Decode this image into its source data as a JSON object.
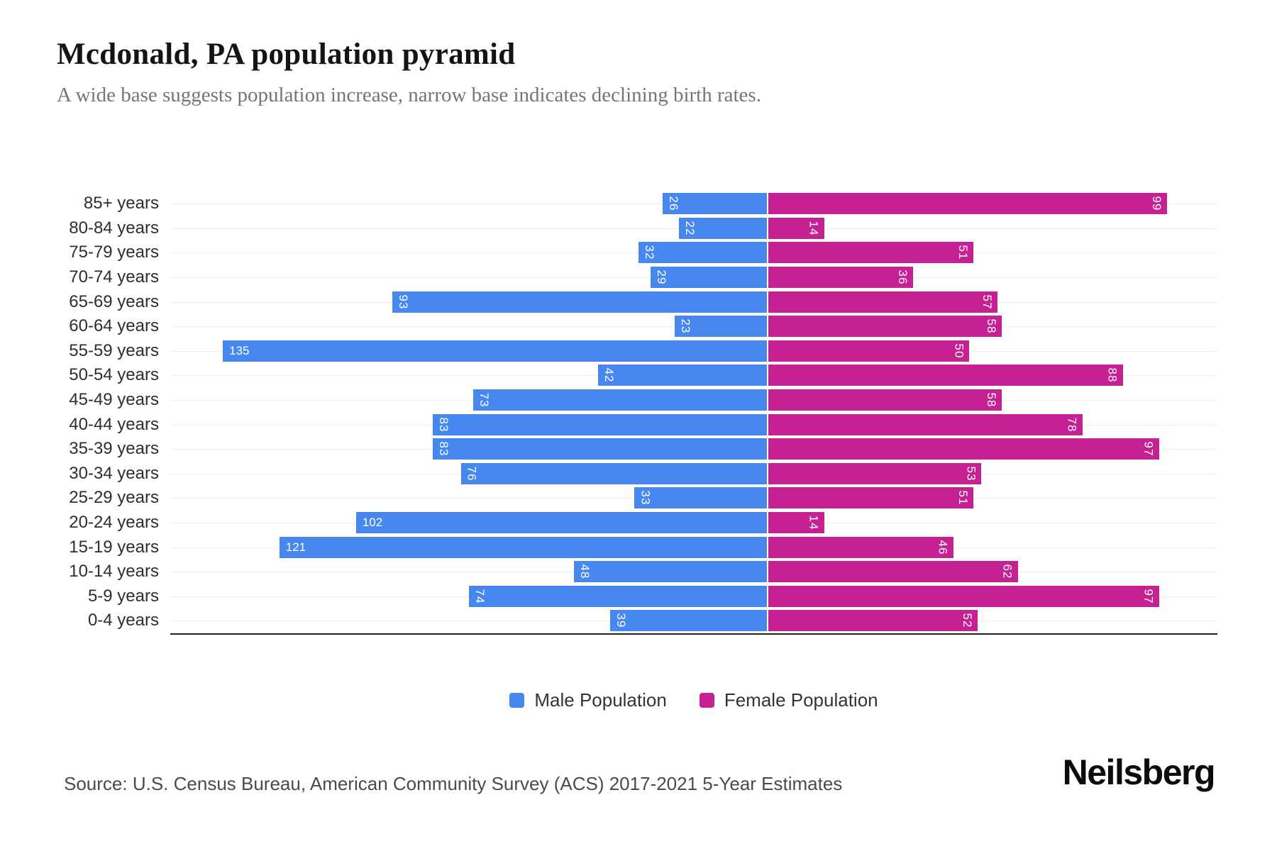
{
  "header": {
    "title": "Mcdonald, PA population pyramid",
    "subtitle": "A wide base suggests population increase, narrow base indicates declining birth rates."
  },
  "chart_data": {
    "type": "bar",
    "variant": "population-pyramid",
    "title": "Mcdonald, PA population pyramid",
    "xlabel": "",
    "ylabel": "",
    "grid": true,
    "legend_position": "bottom",
    "value_labels": "inside-outer-end",
    "categories": [
      "85+ years",
      "80-84 years",
      "75-79 years",
      "70-74 years",
      "65-69 years",
      "60-64 years",
      "55-59 years",
      "50-54 years",
      "45-49 years",
      "40-44 years",
      "35-39 years",
      "30-34 years",
      "25-29 years",
      "20-24 years",
      "15-19 years",
      "10-14 years",
      "5-9 years",
      "0-4 years"
    ],
    "series": [
      {
        "name": "Male Population",
        "color": "#4687f0",
        "direction": "left",
        "values": [
          26,
          22,
          32,
          29,
          93,
          23,
          135,
          42,
          73,
          83,
          83,
          76,
          33,
          102,
          121,
          48,
          74,
          39
        ]
      },
      {
        "name": "Female Population",
        "color": "#c62192",
        "direction": "right",
        "values": [
          99,
          14,
          51,
          36,
          57,
          58,
          50,
          88,
          58,
          78,
          97,
          53,
          51,
          14,
          46,
          62,
          97,
          52
        ]
      }
    ],
    "axis": {
      "male_max_approx": 148,
      "female_max_approx": 112
    }
  },
  "colors": {
    "male": "#4687f0",
    "female": "#c62192",
    "gridline": "#ececec",
    "axis_line": "#222222"
  },
  "footer": {
    "source": "Source: U.S. Census Bureau, American Community Survey (ACS) 2017-2021 5-Year Estimates",
    "logo": "Neilsberg"
  }
}
